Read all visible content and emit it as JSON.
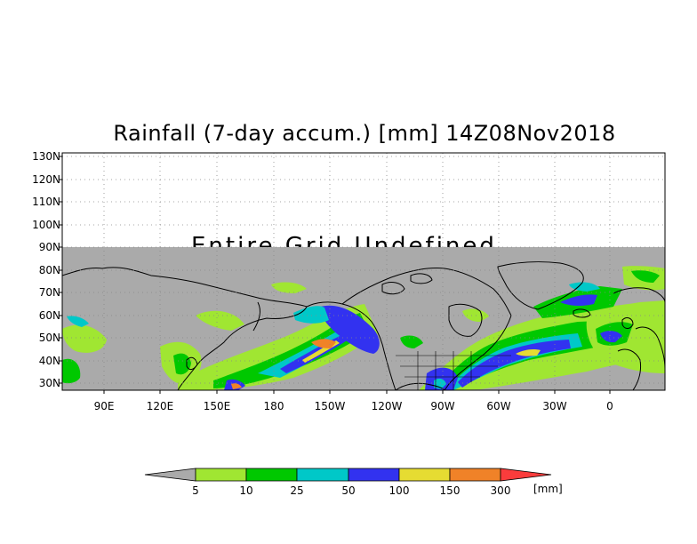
{
  "title": "Rainfall (7-day accum.) [mm] 14Z08Nov2018",
  "map": {
    "undefined_text": "Entire Grid Undefined",
    "lat_labels": [
      "130N",
      "120N",
      "110N",
      "100N",
      "90N",
      "80N",
      "70N",
      "60N",
      "50N",
      "40N",
      "30N"
    ],
    "lon_labels": [
      "90E",
      "120E",
      "150E",
      "180",
      "150W",
      "120W",
      "90W",
      "60W",
      "30W",
      "0"
    ],
    "colors": {
      "undefined": "#aaaaaa",
      "5": "#a0e632",
      "10": "#00c800",
      "25": "#00c8c8",
      "50": "#3232f0",
      "100": "#e6dc32",
      "150": "#f08228",
      "300": "#fa3c3c"
    }
  },
  "colorbar": {
    "labels": [
      "5",
      "10",
      "25",
      "50",
      "100",
      "150",
      "300"
    ],
    "unit": "[mm]",
    "colors": [
      "#a0e632",
      "#00c800",
      "#00c8c8",
      "#3232f0",
      "#e6dc32",
      "#f08228",
      "#fa3c3c"
    ],
    "low_color": "#aaaaaa"
  }
}
